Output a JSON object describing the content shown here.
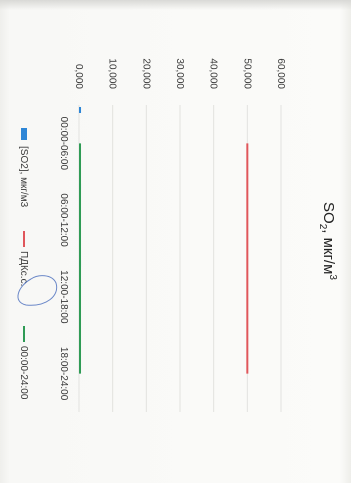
{
  "chart_data": {
    "type": "bar",
    "title": "SO2, мкг/м3",
    "title_main": "SO",
    "title_sub": "2",
    "title_rest": ", мкг/м",
    "title_sup": "3",
    "categories": [
      "00:00-06:00",
      "06:00-12:00",
      "12:00-18:00",
      "18:00-24:00"
    ],
    "y_ticks": [
      "0,000",
      "10,000",
      "20,000",
      "30,000",
      "40,000",
      "50,000",
      "60,000"
    ],
    "ylim": [
      0,
      60
    ],
    "series": [
      {
        "name": "[SO2], мкг/м3",
        "kind": "bar",
        "color": "#2e86d6",
        "values": [
          0.6,
          0.6,
          0.6,
          0.0
        ]
      },
      {
        "name": "ПДКс.с.",
        "kind": "line",
        "color": "#e0565b",
        "values": [
          50,
          50,
          50,
          50
        ]
      },
      {
        "name": "00:00-24:00",
        "kind": "line",
        "color": "#2f9b55",
        "values": [
          0.3,
          0.3,
          0.3,
          0.3
        ]
      }
    ],
    "legend_position": "bottom",
    "grid": true,
    "orientation": "rotated-90-clockwise"
  }
}
